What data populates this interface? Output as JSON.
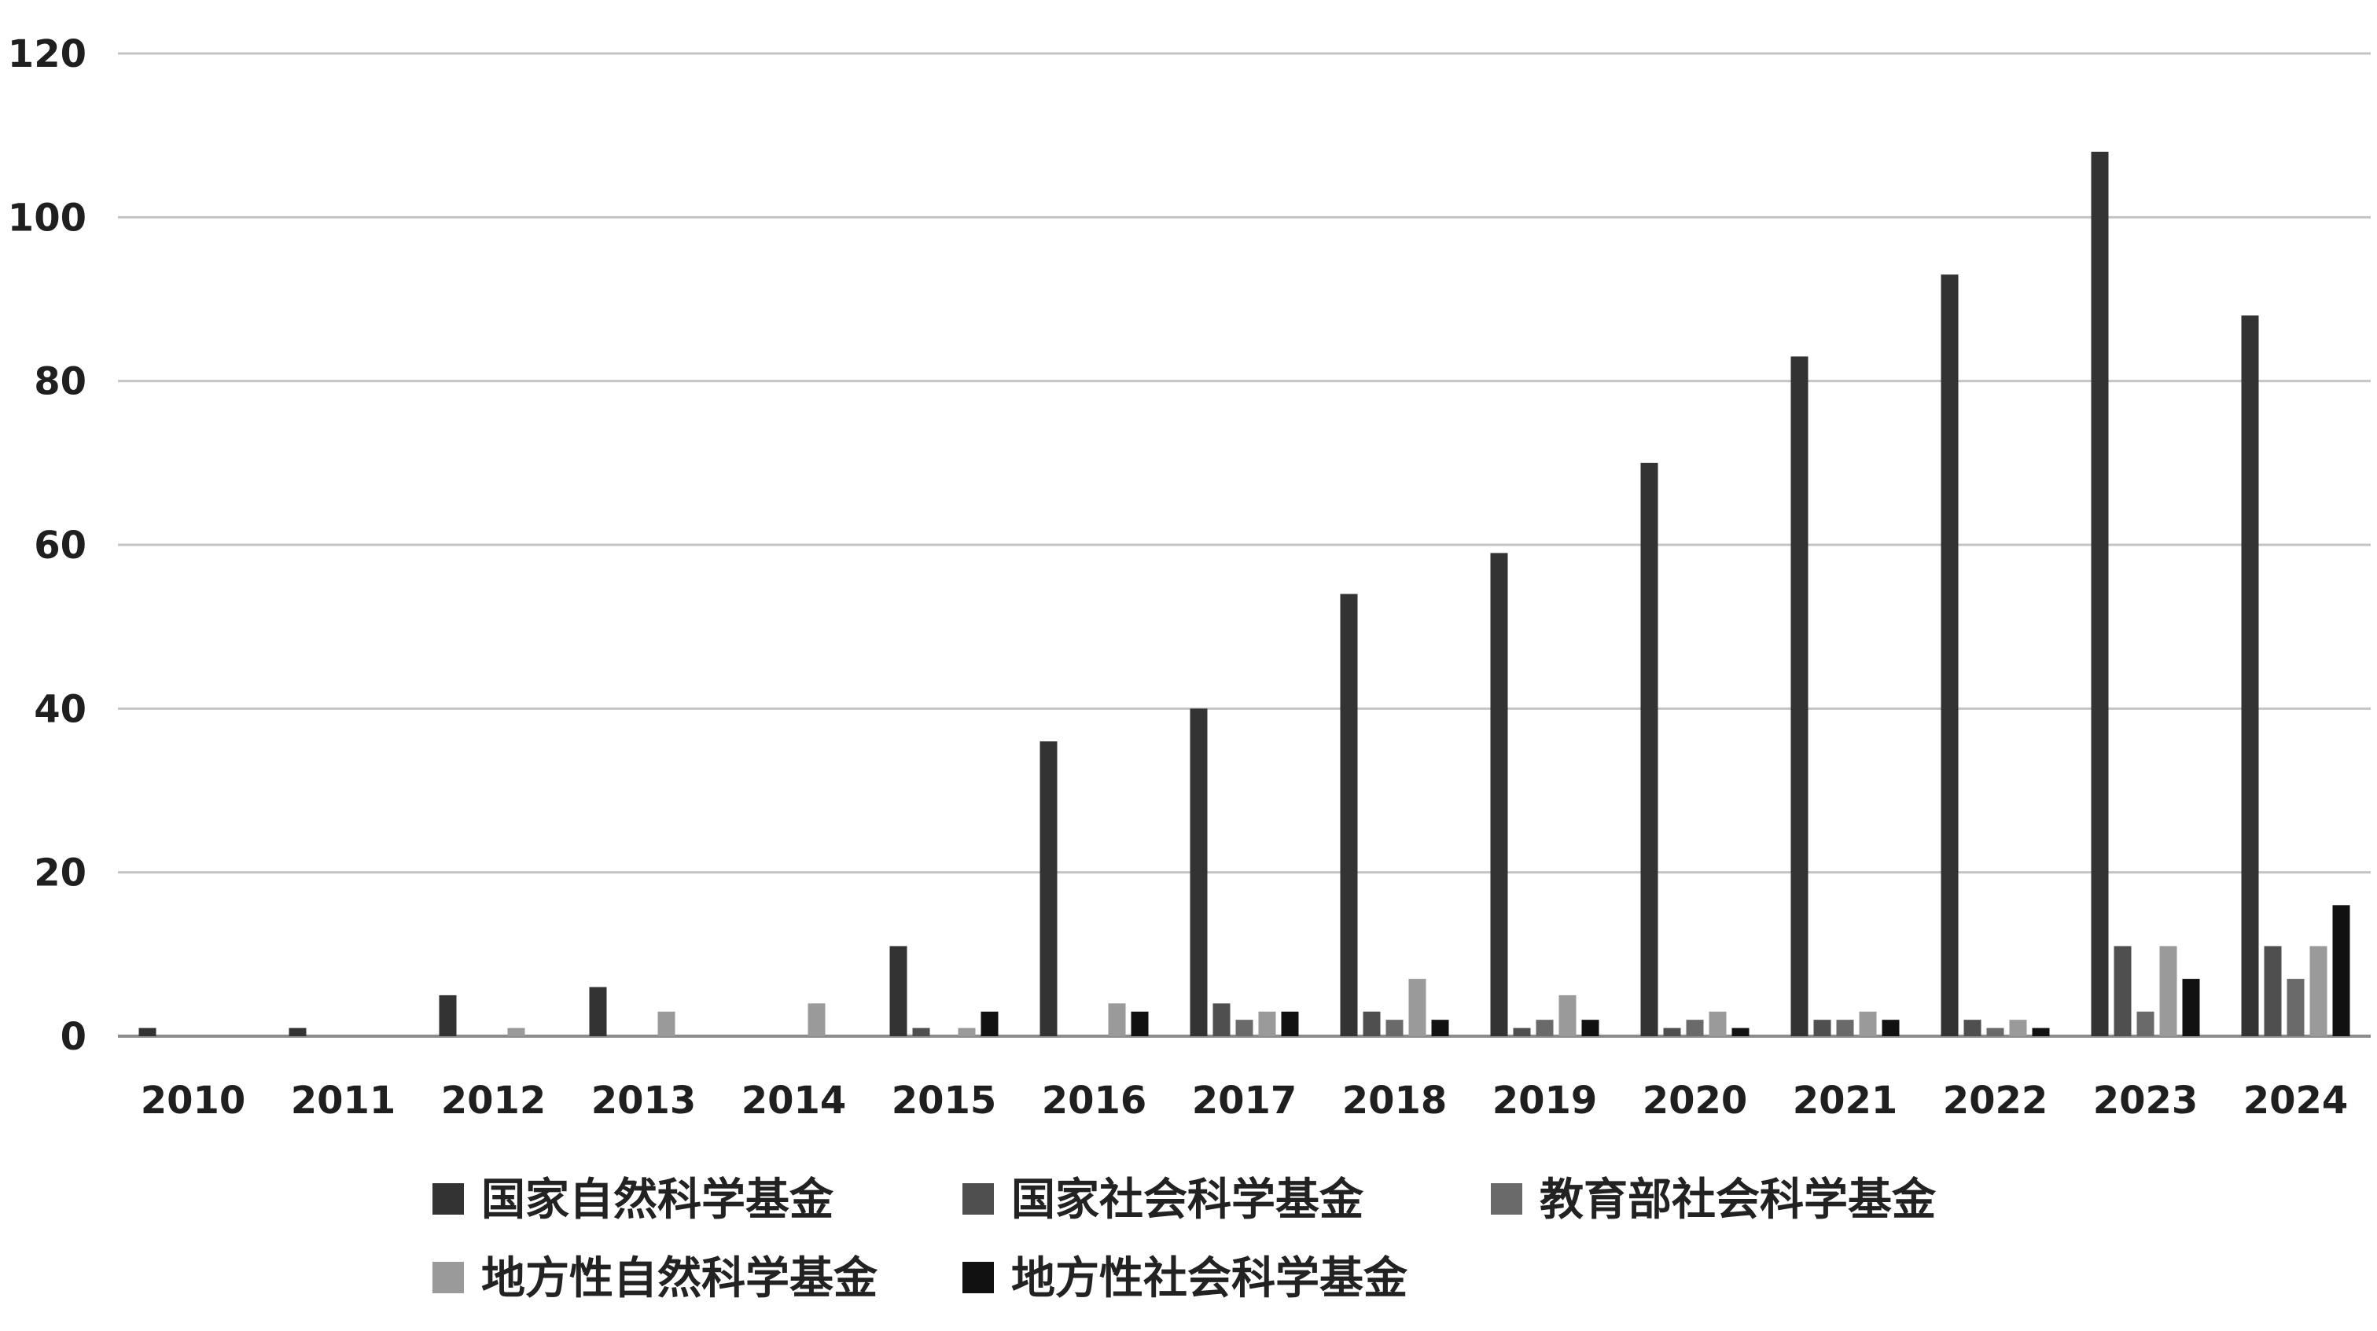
{
  "chart_data": {
    "type": "bar",
    "title": "",
    "xlabel": "",
    "ylabel": "",
    "ylim": [
      0,
      120
    ],
    "yticks": [
      0,
      20,
      40,
      60,
      80,
      100,
      120
    ],
    "grid": true,
    "legend_position": "bottom",
    "categories": [
      "2010",
      "2011",
      "2012",
      "2013",
      "2014",
      "2015",
      "2016",
      "2017",
      "2018",
      "2019",
      "2020",
      "2021",
      "2022",
      "2023",
      "2024"
    ],
    "series": [
      {
        "name": "国家自然科学基金",
        "color": "#333333",
        "values": [
          1,
          1,
          5,
          6,
          0,
          11,
          36,
          40,
          54,
          59,
          70,
          83,
          93,
          108,
          88
        ]
      },
      {
        "name": "国家社会科学基金",
        "color": "#4f4f4f",
        "values": [
          0,
          0,
          0,
          0,
          0,
          1,
          0,
          4,
          3,
          1,
          1,
          2,
          2,
          11,
          11
        ]
      },
      {
        "name": "教育部社会科学基金",
        "color": "#6a6a6a",
        "values": [
          0,
          0,
          0,
          0,
          0,
          0,
          0,
          2,
          2,
          2,
          2,
          2,
          1,
          3,
          7
        ]
      },
      {
        "name": "地方性自然科学基金",
        "color": "#9a9a9a",
        "values": [
          0,
          0,
          1,
          3,
          4,
          1,
          4,
          3,
          7,
          5,
          3,
          3,
          2,
          11,
          11
        ]
      },
      {
        "name": "地方性社会科学基金",
        "color": "#111111",
        "values": [
          0,
          0,
          0,
          0,
          0,
          3,
          3,
          3,
          2,
          2,
          1,
          2,
          1,
          7,
          16
        ]
      }
    ]
  }
}
